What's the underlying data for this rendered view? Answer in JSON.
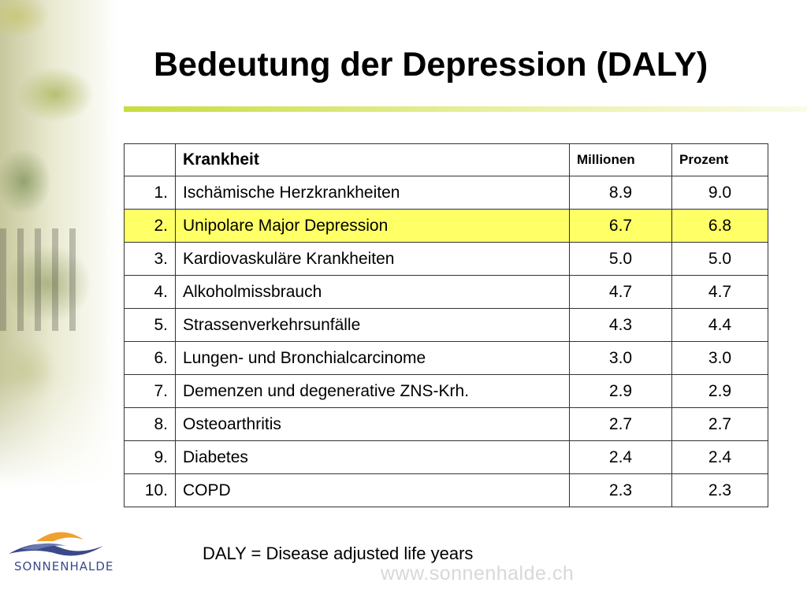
{
  "title": "Bedeutung der Depression (DALY)",
  "table": {
    "headers": {
      "rank": "",
      "disease": "Krankheit",
      "millions": "Millionen",
      "percent": "Prozent"
    },
    "rows": [
      {
        "rank": "1.",
        "disease": "Ischämische Herzkrankheiten",
        "millions": "8.9",
        "percent": "9.0",
        "highlighted": false
      },
      {
        "rank": "2.",
        "disease": "Unipolare Major Depression",
        "millions": "6.7",
        "percent": "6.8",
        "highlighted": true
      },
      {
        "rank": "3.",
        "disease": "Kardiovaskuläre Krankheiten",
        "millions": "5.0",
        "percent": "5.0",
        "highlighted": false
      },
      {
        "rank": "4.",
        "disease": "Alkoholmissbrauch",
        "millions": "4.7",
        "percent": "4.7",
        "highlighted": false
      },
      {
        "rank": "5.",
        "disease": "Strassenverkehrsunfälle",
        "millions": "4.3",
        "percent": "4.4",
        "highlighted": false
      },
      {
        "rank": "6.",
        "disease": "Lungen- und Bronchialcarcinome",
        "millions": "3.0",
        "percent": "3.0",
        "highlighted": false
      },
      {
        "rank": "7.",
        "disease": "Demenzen und degenerative ZNS-Krh.",
        "millions": "2.9",
        "percent": "2.9",
        "highlighted": false
      },
      {
        "rank": "8.",
        "disease": "Osteoarthritis",
        "millions": "2.7",
        "percent": "2.7",
        "highlighted": false
      },
      {
        "rank": "9.",
        "disease": "Diabetes",
        "millions": "2.4",
        "percent": "2.4",
        "highlighted": false
      },
      {
        "rank": "10.",
        "disease": "COPD",
        "millions": "2.3",
        "percent": "2.3",
        "highlighted": false
      }
    ]
  },
  "footnote": "DALY = Disease adjusted life years",
  "website": "www.sonnenhalde.ch",
  "logo": {
    "text": "SONNENHALDE",
    "icon": "sonnenhalde-logo-icon"
  },
  "colors": {
    "title_rule": "#c8dc40",
    "highlight": "#ffff66",
    "logo_blue": "#3a4a88",
    "logo_orange": "#f0a030"
  }
}
